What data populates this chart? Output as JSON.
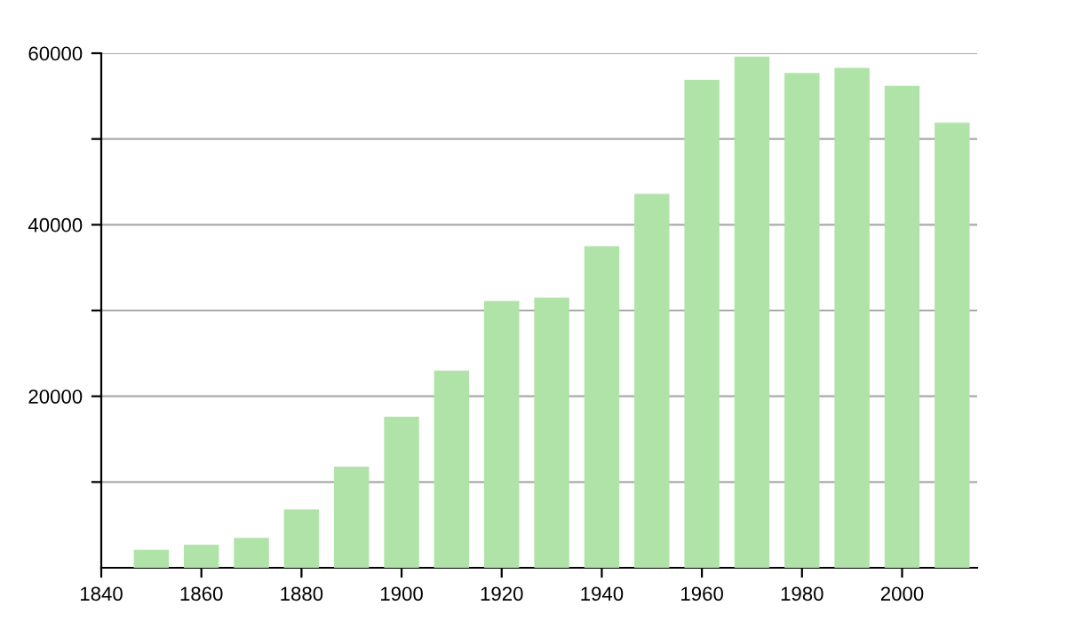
{
  "chart_data": {
    "type": "bar",
    "x": [
      1850,
      1860,
      1870,
      1880,
      1890,
      1900,
      1910,
      1920,
      1930,
      1940,
      1950,
      1960,
      1970,
      1980,
      1990,
      2000,
      2010
    ],
    "values": [
      2100,
      2700,
      3500,
      6800,
      11800,
      17600,
      23000,
      31100,
      31500,
      37500,
      43600,
      56900,
      59600,
      57700,
      58300,
      56200,
      51900
    ],
    "color": "#b0e3a8",
    "xlim": [
      1840,
      2015
    ],
    "xticks": [
      1840,
      1860,
      1880,
      1900,
      1920,
      1940,
      1960,
      1980,
      2000
    ],
    "ylim": [
      0,
      60000
    ],
    "yticks": [
      {
        "value": 10000,
        "label": null
      },
      20000,
      {
        "value": 30000,
        "label": null
      },
      40000,
      {
        "value": 50000,
        "label": null
      },
      60000
    ],
    "grid": "y"
  }
}
